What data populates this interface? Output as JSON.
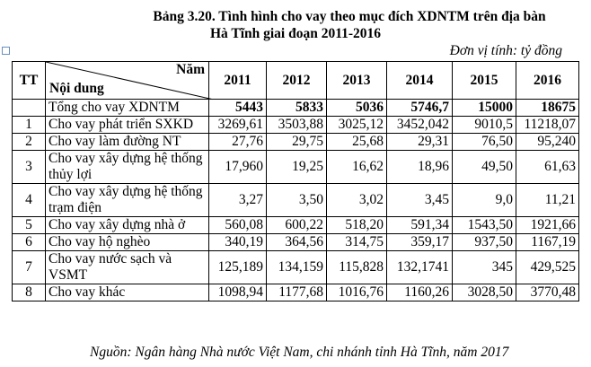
{
  "title_line1": "Bảng 3.20. Tình hình cho vay theo mục đích XDNTM trên địa bàn",
  "title_line2": "Hà Tĩnh giai đoạn 2011-2016",
  "unit": "Đơn vị tính: tỷ đồng",
  "header": {
    "tt": "TT",
    "year_label": "Năm",
    "content_label": "Nội dung",
    "years": [
      "2011",
      "2012",
      "2013",
      "2014",
      "2015",
      "2016"
    ]
  },
  "total": {
    "label": "Tổng cho vay XDNTM",
    "values": [
      "5443",
      "5833",
      "5036",
      "5746,7",
      "15000",
      "18675"
    ]
  },
  "rows": [
    {
      "tt": "1",
      "label": "Cho vay phát triển SXKD",
      "values": [
        "3269,61",
        "3503,88",
        "3025,12",
        "3452,042",
        "9010,5",
        "11218,07"
      ]
    },
    {
      "tt": "2",
      "label": "Cho vay làm đường NT",
      "values": [
        "27,76",
        "29,75",
        "25,68",
        "29,31",
        "76,50",
        "95,240"
      ]
    },
    {
      "tt": "3",
      "label": "Cho vay xây dựng hệ thống thủy lợi",
      "values": [
        "17,960",
        "19,25",
        "16,62",
        "18,96",
        "49,50",
        "61,63"
      ]
    },
    {
      "tt": "4",
      "label": "Cho vay xây dựng hệ thống trạm điện",
      "values": [
        "3,27",
        "3,50",
        "3,02",
        "3,45",
        "9,0",
        "11,21"
      ]
    },
    {
      "tt": "5",
      "label": "Cho vay xây dựng nhà ở",
      "values": [
        "560,08",
        "600,22",
        "518,20",
        "591,34",
        "1543,50",
        "1921,66"
      ]
    },
    {
      "tt": "6",
      "label": "Cho vay hộ nghèo",
      "values": [
        "340,19",
        "364,56",
        "314,75",
        "359,17",
        "937,50",
        "1167,19"
      ]
    },
    {
      "tt": "7",
      "label": "Cho vay nước sạch và VSMT",
      "values": [
        "125,189",
        "134,159",
        "115,828",
        "132,1741",
        "345",
        "429,525"
      ]
    },
    {
      "tt": "8",
      "label": "Cho vay khác",
      "values": [
        "1098,94",
        "1177,68",
        "1016,76",
        "1160,26",
        "3028,50",
        "3770,48"
      ]
    }
  ],
  "source": "Nguồn: Ngân hàng Nhà nước Việt Nam, chi nhánh tỉnh Hà Tĩnh, năm 2017"
}
